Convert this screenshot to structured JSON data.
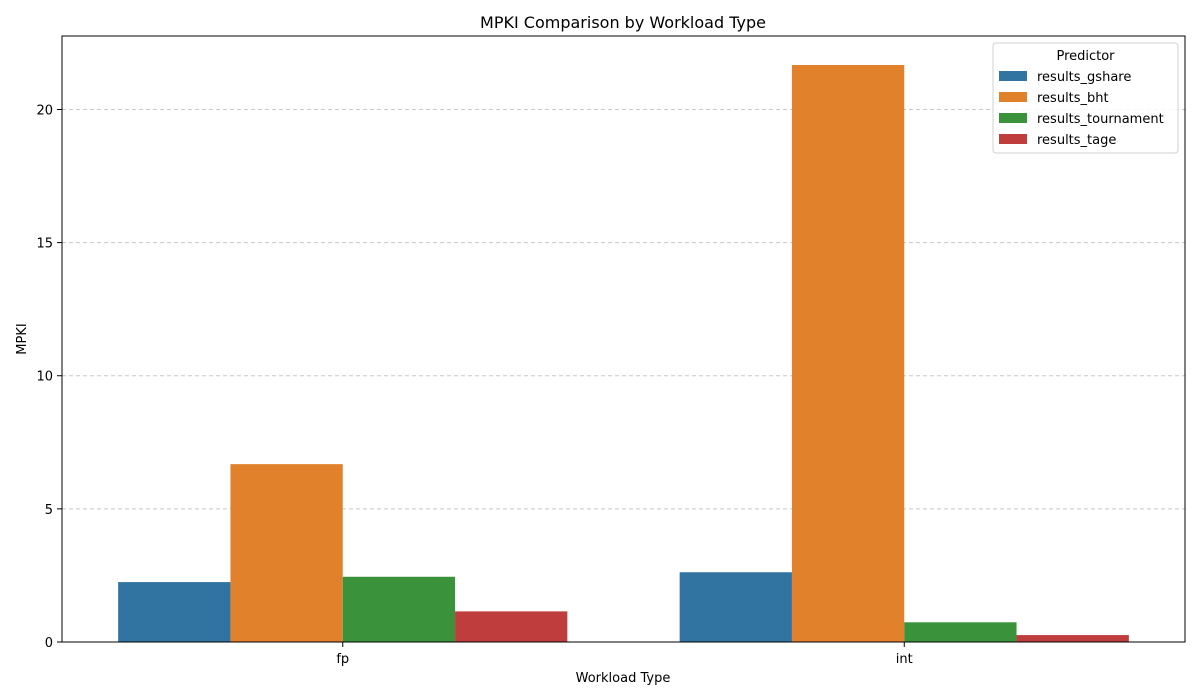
{
  "chart_data": {
    "type": "bar",
    "title": "MPKI Comparison by Workload Type",
    "xlabel": "Workload Type",
    "ylabel": "MPKI",
    "categories": [
      "fp",
      "int"
    ],
    "series": [
      {
        "name": "results_gshare",
        "color": "#3274a1",
        "values": [
          2.25,
          2.62
        ]
      },
      {
        "name": "results_bht",
        "color": "#e1812c",
        "values": [
          6.68,
          21.67
        ]
      },
      {
        "name": "results_tournament",
        "color": "#3a923a",
        "values": [
          2.45,
          0.74
        ]
      },
      {
        "name": "results_tage",
        "color": "#c03d3e",
        "values": [
          1.15,
          0.26
        ]
      }
    ],
    "ylim": [
      0,
      22.76
    ],
    "yticks": [
      0,
      5,
      10,
      15,
      20
    ],
    "grid": "y-dashed",
    "legend": {
      "title": "Predictor",
      "placement": "top-right"
    }
  }
}
